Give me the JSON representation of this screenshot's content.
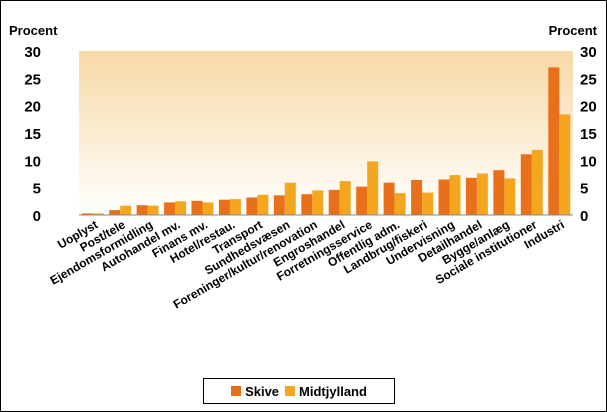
{
  "chart_data": {
    "type": "bar",
    "title": "",
    "ylabel_left": "Procent",
    "ylabel_right": "Procent",
    "ylim": [
      0,
      30
    ],
    "yticks": [
      "0",
      "5",
      "10",
      "15",
      "20",
      "25",
      "30"
    ],
    "categories": [
      "Uoplyst",
      "Post/tele",
      "Ejendomsformidling",
      "Autohandel mv.",
      "Finans mv.",
      "Hotel/restau.",
      "Transport",
      "Sundhedsvæsen",
      "Foreninger/kultur/renovation",
      "Engroshandel",
      "Forretningsservice",
      "Offentlig adm.",
      "Landbrug/fiskeri",
      "Undervisning",
      "Detailhandel",
      "Bygge/anlæg",
      "Sociale institutioner",
      "Industri"
    ],
    "series": [
      {
        "name": "Skive",
        "color": "#E8701A",
        "values": [
          0.3,
          0.9,
          1.8,
          2.3,
          2.6,
          2.8,
          3.2,
          3.6,
          3.8,
          4.6,
          5.2,
          5.9,
          6.4,
          6.5,
          6.8,
          8.2,
          11.1,
          27.0
        ]
      },
      {
        "name": "Midtjylland",
        "color": "#F5A61F",
        "values": [
          0.3,
          1.7,
          1.7,
          2.5,
          2.3,
          2.9,
          3.7,
          5.9,
          4.5,
          6.2,
          9.8,
          4.0,
          4.1,
          7.3,
          7.6,
          6.7,
          11.9,
          18.4
        ]
      }
    ],
    "background_gradient": [
      "#F7D9A6",
      "#FFFFFF"
    ],
    "legend_position": "bottom-center",
    "grid": false
  }
}
